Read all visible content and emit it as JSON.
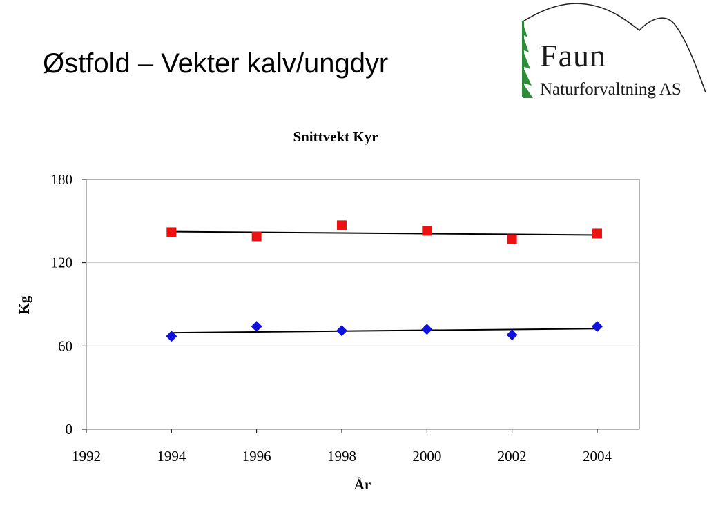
{
  "slide": {
    "title": "Østfold – Vekter kalv/ungdyr"
  },
  "logo": {
    "name": "Faun",
    "subtitle": "Naturforvaltning AS",
    "icons": [
      "spruce-tree-icon",
      "mountain-outline-icon"
    ],
    "tree_color": "#2e8b3a"
  },
  "chart_data": {
    "type": "scatter",
    "title": "Snittvekt Kyr",
    "xlabel": "År",
    "ylabel": "Kg",
    "xlim": [
      1992,
      2004
    ],
    "ylim": [
      0,
      180
    ],
    "xticks": [
      "1992",
      "1994",
      "1996",
      "1998",
      "2000",
      "2002",
      "2004"
    ],
    "yticks": [
      "0",
      "60",
      "120",
      "180"
    ],
    "grid": "horizontal",
    "legend": "none",
    "series": [
      {
        "marker": "square",
        "color": "#ee1111",
        "points": [
          [
            1994,
            142
          ],
          [
            1996,
            139
          ],
          [
            1998,
            147
          ],
          [
            2000,
            143
          ],
          [
            2002,
            137
          ],
          [
            2004,
            141
          ]
        ],
        "trendline": [
          [
            1994,
            142.4
          ],
          [
            2004,
            140.0
          ]
        ]
      },
      {
        "marker": "diamond",
        "color": "#1111dd",
        "points": [
          [
            1994,
            67
          ],
          [
            1996,
            74
          ],
          [
            1998,
            71
          ],
          [
            2000,
            72
          ],
          [
            2002,
            68
          ],
          [
            2004,
            74
          ]
        ],
        "trendline": [
          [
            1994,
            69.5
          ],
          [
            2004,
            72.5
          ]
        ]
      }
    ]
  }
}
